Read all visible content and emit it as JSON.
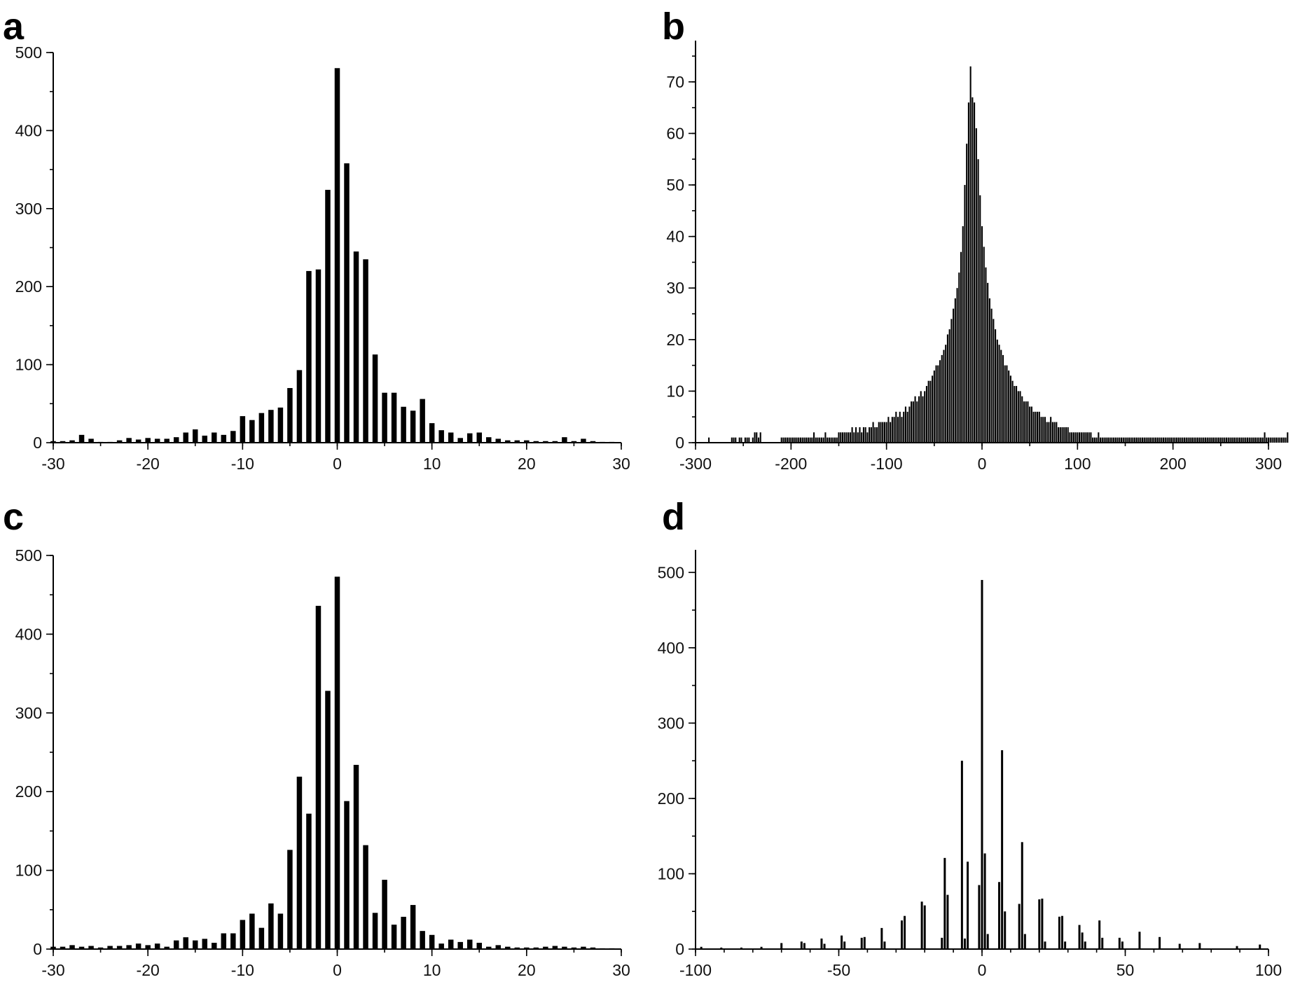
{
  "chart_data": [
    {
      "panel": "a",
      "type": "bar",
      "title": "",
      "xlabel": "",
      "ylabel": "",
      "xlim": [
        -30,
        30
      ],
      "ylim": [
        0,
        500
      ],
      "xticks": [
        -30,
        -20,
        -10,
        0,
        10,
        20,
        30
      ],
      "xtick_labels": [
        "-30",
        "-20",
        "-10",
        "0",
        "10",
        "20",
        "30"
      ],
      "yticks": [
        0,
        100,
        200,
        300,
        400,
        500
      ],
      "ytick_labels": [
        "0",
        "100",
        "200",
        "300",
        "400",
        "500"
      ],
      "series": [
        {
          "name": "a",
          "x": [
            -30,
            -29,
            -28,
            -27,
            -26,
            -25,
            -24,
            -23,
            -22,
            -21,
            -20,
            -19,
            -18,
            -17,
            -16,
            -15,
            -14,
            -13,
            -12,
            -11,
            -10,
            -9,
            -8,
            -7,
            -6,
            -5,
            -4,
            -3,
            -2,
            -1,
            0,
            1,
            2,
            3,
            4,
            5,
            6,
            7,
            8,
            9,
            10,
            11,
            12,
            13,
            14,
            15,
            16,
            17,
            18,
            19,
            20,
            21,
            22,
            23,
            24,
            25,
            26,
            27,
            28,
            29
          ],
          "values": [
            2,
            2,
            3,
            10,
            5,
            1,
            1,
            3,
            6,
            4,
            6,
            5,
            5,
            7,
            13,
            17,
            9,
            13,
            10,
            15,
            34,
            29,
            38,
            42,
            45,
            70,
            93,
            220,
            222,
            324,
            480,
            358,
            245,
            235,
            113,
            64,
            64,
            46,
            41,
            56,
            25,
            16,
            13,
            6,
            12,
            13,
            7,
            5,
            3,
            3,
            3,
            2,
            2,
            2,
            7,
            2,
            5,
            2,
            1,
            1
          ]
        }
      ]
    },
    {
      "panel": "b",
      "type": "bar",
      "title": "",
      "xlabel": "",
      "ylabel": "",
      "xlim": [
        -300,
        300
      ],
      "ylim": [
        0,
        78
      ],
      "xticks": [
        -300,
        -200,
        -100,
        0,
        100,
        200,
        300
      ],
      "xtick_labels": [
        "-300",
        "-200",
        "-100",
        "0",
        "100",
        "200",
        "300"
      ],
      "yticks": [
        0,
        10,
        20,
        30,
        40,
        50,
        60,
        70
      ],
      "ytick_labels": [
        "0",
        "10",
        "20",
        "30",
        "40",
        "50",
        "60",
        "70"
      ],
      "series": [
        {
          "name": "b",
          "x_start": -300,
          "x_step": 2,
          "values": [
            0,
            0,
            0,
            0,
            0,
            0,
            0,
            1,
            0,
            0,
            0,
            0,
            0,
            0,
            0,
            0,
            0,
            0,
            0,
            1,
            1,
            1,
            0,
            1,
            1,
            0,
            1,
            1,
            1,
            0,
            1,
            2,
            2,
            1,
            2,
            0,
            0,
            0,
            0,
            0,
            0,
            0,
            0,
            0,
            0,
            1,
            1,
            1,
            1,
            1,
            1,
            1,
            1,
            1,
            1,
            1,
            1,
            1,
            1,
            1,
            1,
            1,
            2,
            1,
            1,
            1,
            1,
            1,
            2,
            1,
            1,
            1,
            1,
            1,
            1,
            2,
            2,
            2,
            2,
            2,
            2,
            2,
            3,
            2,
            3,
            2,
            3,
            2,
            3,
            3,
            2,
            3,
            3,
            4,
            3,
            3,
            4,
            4,
            4,
            4,
            4,
            5,
            4,
            5,
            5,
            6,
            5,
            6,
            5,
            6,
            7,
            6,
            7,
            8,
            8,
            9,
            8,
            9,
            10,
            9,
            10,
            11,
            12,
            12,
            13,
            14,
            15,
            15,
            16,
            17,
            18,
            19,
            21,
            22,
            24,
            26,
            28,
            30,
            33,
            37,
            42,
            50,
            58,
            66,
            73,
            67,
            66,
            61,
            55,
            48,
            42,
            38,
            34,
            31,
            28,
            26,
            24,
            22,
            20,
            19,
            18,
            17,
            15,
            15,
            14,
            13,
            12,
            11,
            11,
            10,
            10,
            9,
            8,
            8,
            8,
            7,
            7,
            6,
            6,
            6,
            6,
            5,
            5,
            5,
            4,
            4,
            5,
            4,
            4,
            4,
            3,
            3,
            3,
            3,
            3,
            3,
            2,
            2,
            2,
            2,
            2,
            2,
            2,
            2,
            2,
            2,
            2,
            2,
            1,
            1,
            1,
            2,
            1,
            1,
            1,
            1,
            1,
            1,
            1,
            1,
            1,
            1,
            1,
            1,
            1,
            1,
            1,
            1,
            1,
            1,
            1,
            1,
            1,
            1,
            1,
            1,
            1,
            1,
            1,
            1,
            1,
            1,
            1,
            1,
            1,
            1,
            1,
            1,
            1,
            1,
            1,
            1,
            1,
            1,
            1,
            1,
            1,
            1,
            1,
            1,
            1,
            1,
            1,
            1,
            1,
            1,
            1,
            1,
            1,
            1,
            1,
            1,
            1,
            1,
            1,
            1,
            1,
            1,
            1,
            1,
            1,
            1,
            1,
            1,
            1,
            1,
            1,
            1,
            1,
            1,
            1,
            1,
            1,
            1,
            1,
            1,
            1,
            1,
            2,
            1,
            1,
            1,
            1,
            1,
            1,
            1,
            1,
            1,
            1,
            1,
            2
          ]
        }
      ]
    },
    {
      "panel": "c",
      "type": "bar",
      "title": "",
      "xlabel": "",
      "ylabel": "",
      "xlim": [
        -30,
        30
      ],
      "ylim": [
        0,
        500
      ],
      "xticks": [
        -30,
        -20,
        -10,
        0,
        10,
        20,
        30
      ],
      "xtick_labels": [
        "-30",
        "-20",
        "-10",
        "0",
        "10",
        "20",
        "30"
      ],
      "yticks": [
        0,
        100,
        200,
        300,
        400,
        500
      ],
      "ytick_labels": [
        "0",
        "100",
        "200",
        "300",
        "400",
        "500"
      ],
      "series": [
        {
          "name": "c",
          "x": [
            -30,
            -29,
            -28,
            -27,
            -26,
            -25,
            -24,
            -23,
            -22,
            -21,
            -20,
            -19,
            -18,
            -17,
            -16,
            -15,
            -14,
            -13,
            -12,
            -11,
            -10,
            -9,
            -8,
            -7,
            -6,
            -5,
            -4,
            -3,
            -2,
            -1,
            0,
            1,
            2,
            3,
            4,
            5,
            6,
            7,
            8,
            9,
            10,
            11,
            12,
            13,
            14,
            15,
            16,
            17,
            18,
            19,
            20,
            21,
            22,
            23,
            24,
            25,
            26,
            27,
            28,
            29
          ],
          "values": [
            3,
            3,
            5,
            3,
            4,
            2,
            4,
            4,
            5,
            7,
            5,
            7,
            3,
            11,
            15,
            11,
            13,
            8,
            20,
            20,
            37,
            45,
            27,
            58,
            45,
            126,
            219,
            172,
            436,
            328,
            473,
            188,
            234,
            132,
            46,
            88,
            31,
            41,
            56,
            23,
            18,
            7,
            12,
            9,
            12,
            8,
            3,
            5,
            3,
            2,
            2,
            2,
            3,
            4,
            3,
            2,
            3,
            2,
            1,
            1
          ]
        }
      ]
    },
    {
      "panel": "d",
      "type": "bar",
      "title": "",
      "xlabel": "",
      "ylabel": "",
      "xlim": [
        -100,
        100
      ],
      "ylim": [
        0,
        530
      ],
      "xticks": [
        -100,
        -50,
        0,
        50,
        100
      ],
      "xtick_labels": [
        "-100",
        "-50",
        "0",
        "50",
        "100"
      ],
      "yticks": [
        0,
        100,
        200,
        300,
        400,
        500
      ],
      "ytick_labels": [
        "0",
        "100",
        "200",
        "300",
        "400",
        "500"
      ],
      "series": [
        {
          "name": "d",
          "x": [
            -98,
            -91,
            -84,
            -77,
            -70,
            -63,
            -62,
            -56,
            -55,
            -49,
            -48,
            -42,
            -41,
            -35,
            -34,
            -28,
            -27,
            -21,
            -20,
            -14,
            -13,
            -12,
            -7,
            -6,
            -5,
            -1,
            0,
            1,
            2,
            6,
            7,
            8,
            13,
            14,
            15,
            20,
            21,
            22,
            27,
            28,
            29,
            34,
            35,
            36,
            41,
            42,
            48,
            49,
            55,
            62,
            69,
            76,
            89,
            97
          ],
          "values": [
            3,
            2,
            2,
            3,
            8,
            10,
            8,
            14,
            7,
            18,
            10,
            15,
            16,
            28,
            10,
            38,
            44,
            63,
            58,
            15,
            121,
            72,
            250,
            14,
            116,
            85,
            490,
            127,
            20,
            89,
            264,
            50,
            60,
            142,
            20,
            66,
            67,
            10,
            43,
            44,
            10,
            32,
            22,
            10,
            38,
            15,
            15,
            10,
            23,
            16,
            7,
            8,
            4,
            6
          ]
        }
      ]
    }
  ],
  "panel_labels": [
    "a",
    "b",
    "c",
    "d"
  ]
}
